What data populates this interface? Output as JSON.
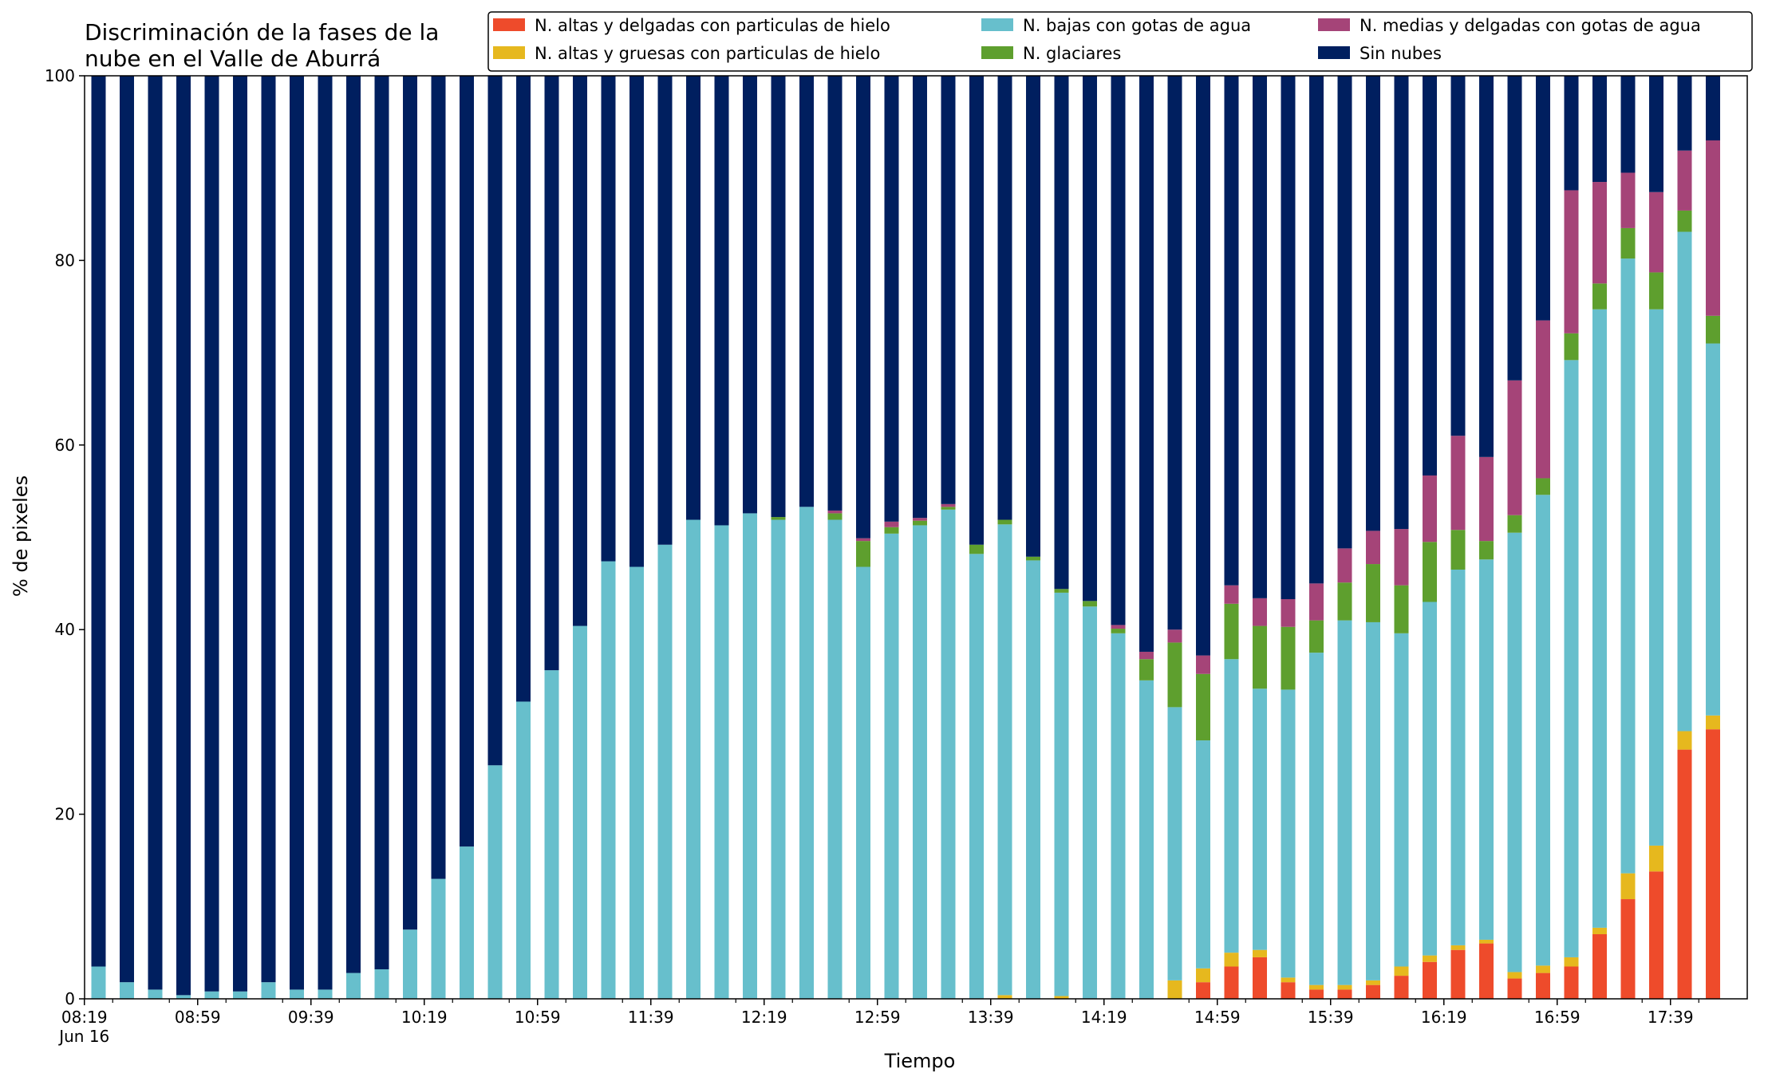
{
  "chart_data": {
    "type": "bar",
    "stacked": true,
    "title": "Discriminación de la fases de la\nnube en el Valle de Aburrá",
    "xlabel": "Tiempo",
    "ylabel": "% de pixeles",
    "ylim": [
      0,
      100
    ],
    "yticks": [
      0,
      20,
      40,
      60,
      80,
      100
    ],
    "grid": false,
    "legend_position": "top-right",
    "categories": [
      "08:19",
      "08:29",
      "08:39",
      "08:49",
      "08:59",
      "09:09",
      "09:19",
      "09:29",
      "09:39",
      "09:49",
      "09:59",
      "10:09",
      "10:19",
      "10:29",
      "10:39",
      "10:49",
      "10:59",
      "11:09",
      "11:19",
      "11:29",
      "11:39",
      "11:49",
      "11:59",
      "12:09",
      "12:19",
      "12:29",
      "12:39",
      "12:49",
      "12:59",
      "13:09",
      "13:19",
      "13:29",
      "13:39",
      "13:49",
      "13:59",
      "14:09",
      "14:19",
      "14:29",
      "14:39",
      "14:49",
      "14:59",
      "15:09",
      "15:19",
      "15:29",
      "15:39",
      "15:49",
      "15:59",
      "16:09",
      "16:19",
      "16:29",
      "16:39",
      "16:49",
      "16:59",
      "17:09",
      "17:19",
      "17:29",
      "17:39",
      "17:49"
    ],
    "x_tick_labels": [
      {
        "index": 0,
        "label": "08:19",
        "sublabel": "Jun 16"
      },
      {
        "index": 4,
        "label": "08:59"
      },
      {
        "index": 8,
        "label": "09:39"
      },
      {
        "index": 12,
        "label": "10:19"
      },
      {
        "index": 16,
        "label": "10:59"
      },
      {
        "index": 20,
        "label": "11:39"
      },
      {
        "index": 24,
        "label": "12:19"
      },
      {
        "index": 28,
        "label": "12:59"
      },
      {
        "index": 32,
        "label": "13:39"
      },
      {
        "index": 36,
        "label": "14:19"
      },
      {
        "index": 40,
        "label": "14:59"
      },
      {
        "index": 44,
        "label": "15:39"
      },
      {
        "index": 48,
        "label": "16:19"
      },
      {
        "index": 52,
        "label": "16:59"
      },
      {
        "index": 56,
        "label": "17:39"
      }
    ],
    "series": [
      {
        "name": "N. altas y delgadas con particulas de hielo",
        "color": "#ee4b2b",
        "values": [
          0,
          0,
          0,
          0,
          0,
          0,
          0,
          0,
          0,
          0,
          0,
          0,
          0,
          0,
          0,
          0,
          0,
          0,
          0,
          0,
          0,
          0,
          0,
          0,
          0,
          0,
          0,
          0,
          0,
          0,
          0,
          0,
          0,
          0,
          0,
          0,
          0,
          0,
          0,
          1.8,
          3.5,
          4.5,
          1.8,
          1.0,
          1.0,
          1.5,
          2.5,
          4.0,
          5.3,
          6.0,
          2.2,
          2.8,
          3.5,
          7.0,
          10.8,
          13.8,
          27.0,
          29.2
        ]
      },
      {
        "name": "N. altas y gruesas con particulas de hielo",
        "color": "#e6b81e",
        "values": [
          0,
          0,
          0,
          0,
          0,
          0,
          0,
          0,
          0,
          0,
          0,
          0,
          0,
          0,
          0,
          0,
          0,
          0,
          0,
          0,
          0,
          0,
          0,
          0,
          0,
          0,
          0,
          0,
          0,
          0,
          0,
          0,
          0.4,
          0,
          0.3,
          0,
          0,
          0,
          2.0,
          1.5,
          1.5,
          0.8,
          0.5,
          0.5,
          0.5,
          0.5,
          1.0,
          0.7,
          0.5,
          0.4,
          0.7,
          0.8,
          1.0,
          0.7,
          2.8,
          2.8,
          2.0,
          1.5
        ]
      },
      {
        "name": "N. bajas con gotas de agua",
        "color": "#67bfcc",
        "values": [
          3.5,
          1.8,
          1.0,
          0.4,
          0.8,
          0.8,
          1.8,
          1.0,
          1.0,
          2.8,
          3.2,
          7.5,
          13.0,
          16.5,
          25.3,
          32.2,
          35.6,
          40.4,
          47.4,
          46.8,
          49.2,
          51.9,
          51.3,
          52.6,
          51.9,
          53.3,
          51.9,
          46.8,
          50.4,
          51.3,
          53.0,
          48.2,
          51.0,
          47.5,
          43.7,
          42.5,
          39.6,
          34.5,
          29.6,
          24.7,
          31.8,
          28.3,
          31.2,
          36.0,
          39.5,
          38.8,
          36.1,
          38.3,
          40.7,
          41.2,
          47.6,
          51.0,
          64.7,
          67.0,
          66.6,
          58.1,
          54.1,
          40.3
        ]
      },
      {
        "name": "N. glaciares",
        "color": "#5e9f2e",
        "values": [
          0,
          0,
          0,
          0,
          0,
          0,
          0,
          0,
          0,
          0,
          0,
          0,
          0,
          0,
          0,
          0,
          0,
          0,
          0,
          0,
          0,
          0,
          0,
          0,
          0.3,
          0,
          0.7,
          2.8,
          0.7,
          0.5,
          0.3,
          1.0,
          0.5,
          0.4,
          0.4,
          0.6,
          0.5,
          2.3,
          7.0,
          7.2,
          6.0,
          6.8,
          6.8,
          3.5,
          4.1,
          6.3,
          5.2,
          6.5,
          4.3,
          2.0,
          1.9,
          1.8,
          2.9,
          2.8,
          3.3,
          4.0,
          2.3,
          3.0
        ]
      },
      {
        "name": "N. medias y delgadas con gotas de agua",
        "color": "#a54478",
        "values": [
          0,
          0,
          0,
          0,
          0,
          0,
          0,
          0,
          0,
          0,
          0,
          0,
          0,
          0,
          0,
          0,
          0,
          0,
          0,
          0,
          0,
          0,
          0,
          0,
          0,
          0,
          0.3,
          0.3,
          0.6,
          0.3,
          0.3,
          0,
          0,
          0,
          0,
          0,
          0.4,
          0.8,
          1.4,
          2.0,
          2.0,
          3.0,
          3.0,
          4.0,
          3.7,
          3.6,
          6.1,
          7.2,
          10.2,
          9.1,
          14.6,
          17.1,
          15.5,
          11.0,
          6.0,
          8.7,
          6.5,
          19.0
        ]
      },
      {
        "name": "Sin nubes",
        "color": "#001f5f",
        "values": [
          96.5,
          98.2,
          99.0,
          99.6,
          99.2,
          99.2,
          98.2,
          99.0,
          99.0,
          97.2,
          96.8,
          92.5,
          87.0,
          83.5,
          74.7,
          67.8,
          64.4,
          59.6,
          52.6,
          53.2,
          50.8,
          48.1,
          48.7,
          47.4,
          47.8,
          46.7,
          47.1,
          50.1,
          48.3,
          47.9,
          46.4,
          50.8,
          48.1,
          52.1,
          55.6,
          56.9,
          59.5,
          62.4,
          60.0,
          62.8,
          55.2,
          56.6,
          56.7,
          55.0,
          51.2,
          49.3,
          49.1,
          43.3,
          39.0,
          41.3,
          33.0,
          26.5,
          12.4,
          11.5,
          10.5,
          12.6,
          8.1,
          7.0
        ]
      }
    ]
  }
}
